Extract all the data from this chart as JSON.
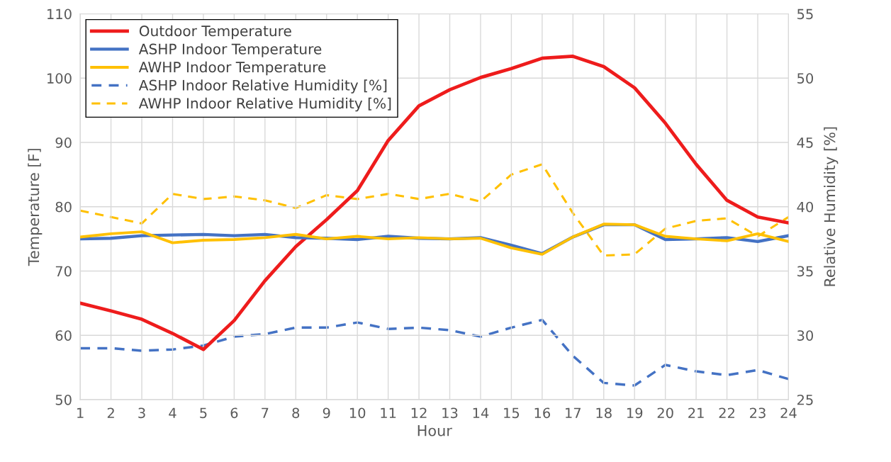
{
  "chart_data": {
    "type": "line",
    "xlabel": "Hour",
    "ylabel": "Temperature [F]",
    "y2label": "Relative Humidity [%]",
    "x": [
      1,
      2,
      3,
      4,
      5,
      6,
      7,
      8,
      9,
      10,
      11,
      12,
      13,
      14,
      15,
      16,
      17,
      18,
      19,
      20,
      21,
      22,
      23,
      24
    ],
    "xlim": [
      1,
      24
    ],
    "xticks": [
      1,
      2,
      3,
      4,
      5,
      6,
      7,
      8,
      9,
      10,
      11,
      12,
      13,
      14,
      15,
      16,
      17,
      18,
      19,
      20,
      21,
      22,
      23,
      24
    ],
    "ylim": [
      50,
      110
    ],
    "yticks": [
      50,
      60,
      70,
      80,
      90,
      100,
      110
    ],
    "y2lim": [
      25,
      55
    ],
    "y2ticks": [
      25,
      30,
      35,
      40,
      45,
      50,
      55
    ],
    "grid": true,
    "legend": "top left",
    "marker": "none",
    "series": [
      {
        "name": "Outdoor Temperature",
        "color": "#ee1c1c",
        "line_style": "solid",
        "values": [
          65,
          63.8,
          62.5,
          60.3,
          57.8,
          62.3,
          68.5,
          73.8,
          78,
          82.5,
          90.3,
          95.7,
          98.2,
          100.1,
          101.5,
          103.1,
          103.4,
          101.8,
          98.5,
          93,
          86.6,
          81,
          78.4,
          77.5
        ]
      },
      {
        "name": "ASHP Indoor Temperature",
        "color": "#4472c4",
        "line_style": "solid",
        "values": [
          75,
          75.1,
          75.5,
          75.6,
          75.7,
          75.5,
          75.7,
          75.2,
          75.1,
          74.9,
          75.4,
          75.1,
          75,
          75.2,
          74,
          72.7,
          75.3,
          77.2,
          77.2,
          74.9,
          75,
          75.2,
          74.6,
          75.5
        ]
      },
      {
        "name": "AWHP Indoor Temperature",
        "color": "#ffc000",
        "line_style": "solid",
        "values": [
          75.3,
          75.8,
          76.1,
          74.4,
          74.8,
          74.9,
          75.2,
          75.7,
          75,
          75.4,
          75,
          75.2,
          75,
          75.1,
          73.6,
          72.6,
          75.3,
          77.3,
          77.2,
          75.4,
          75,
          74.7,
          75.8,
          74.6
        ]
      },
      {
        "name": "ASHP Indoor Relative Humidity [%]",
        "color": "#4472c4",
        "line_style": "dashed",
        "axis": "y2",
        "values": [
          29,
          29,
          28.8,
          28.9,
          29.2,
          29.9,
          30.1,
          30.6,
          30.6,
          31,
          30.5,
          30.6,
          30.4,
          29.9,
          30.6,
          31.2,
          28.4,
          26.3,
          26.1,
          27.7,
          27.2,
          26.9,
          27.3,
          26.6
        ]
      },
      {
        "name": "AWHP Indoor Relative Humidity [%]",
        "color": "#ffc000",
        "line_style": "dashed",
        "axis": "y2",
        "values": [
          39.7,
          39.2,
          38.7,
          41,
          40.6,
          40.8,
          40.5,
          39.9,
          40.9,
          40.6,
          41,
          40.6,
          41,
          40.4,
          42.5,
          43.3,
          39.5,
          36.2,
          36.3,
          38.3,
          38.9,
          39.1,
          37.7,
          39.2
        ]
      }
    ]
  }
}
